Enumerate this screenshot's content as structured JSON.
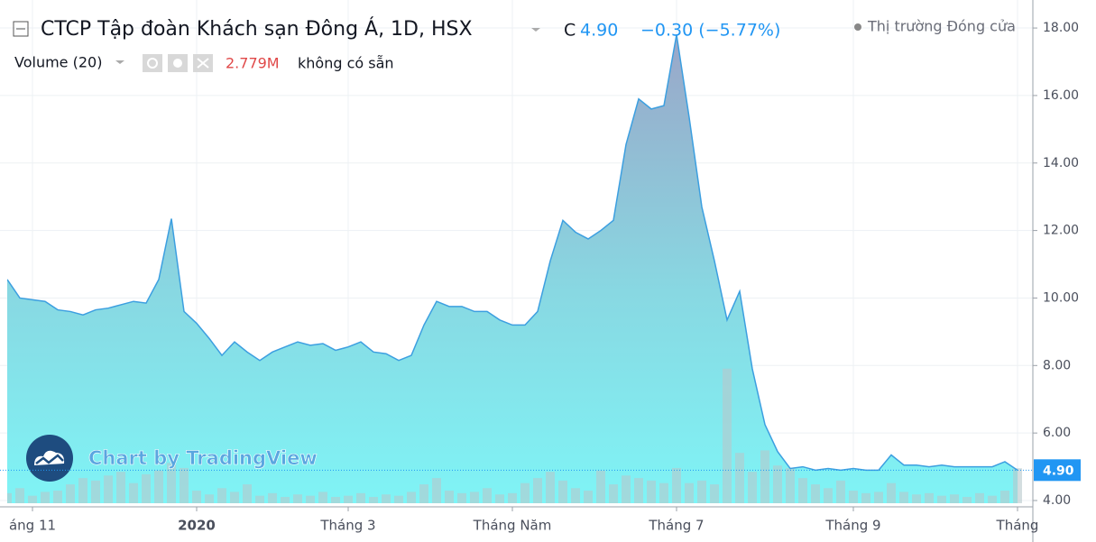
{
  "chart_data": {
    "type": "area",
    "header": {
      "title": "CTCP Tập đoàn Khách sạn Đông Á, 1D, HSX",
      "close_prefix": "C",
      "close": {
        "value": 4.9,
        "label": "4.90"
      },
      "change": "−0.30 (−5.77%)",
      "market_status": "Thị trường Đóng cửa",
      "volume_name": "Volume (20)",
      "volume_value": {
        "value": 2.779,
        "label": "2.779M"
      },
      "volume_note": "không có sẵn"
    },
    "watermark": "Chart by TradingView",
    "color": "#3c9fe0",
    "categories": [
      null,
      null,
      "áng 11",
      null,
      null,
      null,
      null,
      null,
      null,
      null,
      null,
      null,
      null,
      null,
      null,
      "2020",
      null,
      null,
      null,
      null,
      null,
      null,
      null,
      null,
      null,
      null,
      null,
      "Tháng 3",
      null,
      null,
      null,
      null,
      null,
      null,
      null,
      null,
      null,
      null,
      null,
      null,
      "Tháng Năm",
      null,
      null,
      null,
      null,
      null,
      null,
      null,
      null,
      null,
      null,
      null,
      null,
      "Tháng 7",
      null,
      null,
      null,
      null,
      null,
      null,
      null,
      null,
      null,
      null,
      null,
      null,
      null,
      "Tháng 9",
      null,
      null,
      null,
      null,
      null,
      null,
      null,
      null,
      null,
      null,
      null,
      null,
      "Tháng"
    ],
    "values": [
      10.55,
      10.0,
      9.95,
      9.9,
      9.65,
      9.6,
      9.5,
      9.65,
      9.7,
      9.8,
      9.9,
      9.85,
      10.55,
      12.35,
      9.6,
      9.25,
      8.8,
      8.3,
      8.7,
      8.4,
      8.15,
      8.4,
      8.55,
      8.7,
      8.6,
      8.65,
      8.45,
      8.55,
      8.7,
      8.4,
      8.35,
      8.15,
      8.3,
      9.2,
      9.9,
      9.75,
      9.75,
      9.6,
      9.6,
      9.35,
      9.2,
      9.2,
      9.6,
      11.1,
      12.3,
      11.95,
      11.75,
      12.0,
      12.3,
      14.55,
      15.9,
      15.6,
      15.7,
      17.8,
      15.35,
      12.7,
      11.1,
      9.35,
      10.2,
      7.9,
      6.25,
      5.45,
      4.95,
      5.0,
      4.9,
      4.95,
      4.9,
      4.95,
      4.9,
      4.9,
      5.35,
      5.05,
      5.05,
      5.0,
      5.05,
      5.0,
      5.0,
      5.0,
      5.0,
      5.15,
      4.9
    ],
    "volume": {
      "color": "#b8c8cc",
      "ylim": [
        0,
        40
      ],
      "values": [
        0.8,
        1.2,
        0.6,
        0.9,
        1.0,
        1.5,
        2.0,
        1.8,
        2.2,
        2.5,
        1.6,
        2.3,
        2.6,
        3.2,
        2.8,
        1.0,
        0.7,
        1.2,
        0.9,
        1.5,
        0.6,
        0.8,
        0.5,
        0.7,
        0.6,
        0.9,
        0.5,
        0.6,
        0.8,
        0.5,
        0.7,
        0.6,
        0.9,
        1.5,
        2.0,
        1.0,
        0.8,
        0.9,
        1.2,
        0.7,
        0.8,
        1.6,
        2.0,
        2.5,
        1.8,
        1.2,
        1.0,
        2.6,
        1.5,
        2.2,
        2.0,
        1.8,
        1.6,
        2.8,
        1.6,
        1.8,
        1.5,
        10.7,
        4.0,
        2.5,
        4.2,
        3.0,
        2.8,
        2.0,
        1.5,
        1.2,
        1.8,
        1.0,
        0.8,
        0.9,
        1.6,
        0.9,
        0.7,
        0.8,
        0.6,
        0.7,
        0.5,
        0.8,
        0.6,
        1.0,
        2.779
      ]
    },
    "last_price": {
      "value": 4.9,
      "label": "4.90"
    },
    "ylim": [
      3.92,
      18.83
    ],
    "yticks": [
      {
        "value": 4,
        "label": "4.00"
      },
      {
        "value": 6,
        "label": "6.00"
      },
      {
        "value": 8,
        "label": "8.00"
      },
      {
        "value": 10,
        "label": "10.00"
      },
      {
        "value": 12,
        "label": "12.00"
      },
      {
        "value": 14,
        "label": "14.00"
      },
      {
        "value": 16,
        "label": "16.00"
      },
      {
        "value": 18,
        "label": "18.00"
      }
    ],
    "grid": true
  }
}
